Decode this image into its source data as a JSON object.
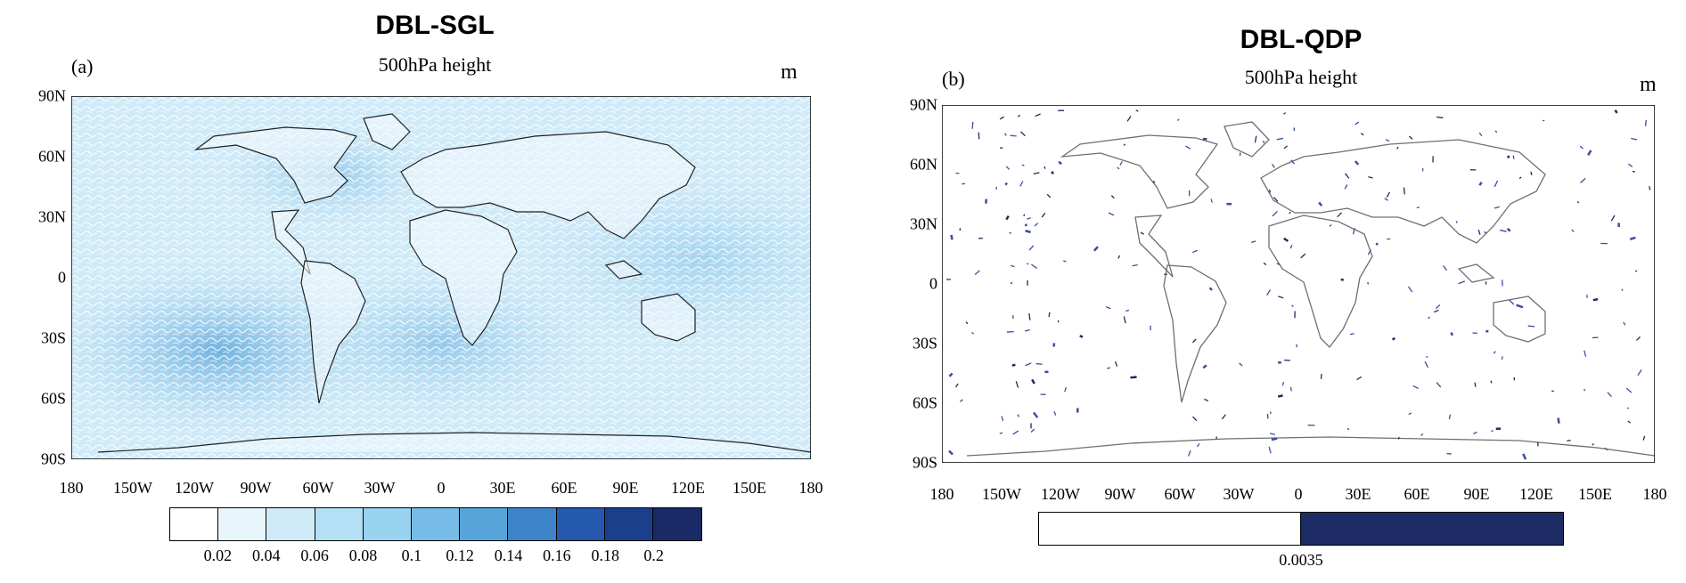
{
  "panel_a": {
    "title": "DBL-SGL",
    "label": "(a)",
    "subtitle": "500hPa height",
    "unit": "m",
    "lat_labels": [
      "90N",
      "60N",
      "30N",
      "0",
      "30S",
      "60S",
      "90S"
    ],
    "lon_labels": [
      "180",
      "150W",
      "120W",
      "90W",
      "60W",
      "30W",
      "0",
      "30E",
      "60E",
      "90E",
      "120E",
      "150E",
      "180"
    ],
    "colorbar": {
      "colors": [
        "#ffffff",
        "#e8f5fb",
        "#cfebf7",
        "#b3e0f5",
        "#99d3f0",
        "#77bce6",
        "#55a5da",
        "#3d84c8",
        "#2459ad",
        "#1c3f8c",
        "#1a2a66"
      ],
      "labels": [
        "0.02",
        "0.04",
        "0.06",
        "0.08",
        "0.1",
        "0.12",
        "0.14",
        "0.16",
        "0.18",
        "0.2"
      ]
    }
  },
  "panel_b": {
    "title": "DBL-QDP",
    "label": "(b)",
    "subtitle": "500hPa height",
    "unit": "m",
    "lat_labels": [
      "90N",
      "60N",
      "30N",
      "0",
      "30S",
      "60S",
      "90S"
    ],
    "lon_labels": [
      "180",
      "150W",
      "120W",
      "90W",
      "60W",
      "30W",
      "0",
      "30E",
      "60E",
      "90E",
      "120E",
      "150E",
      "180"
    ],
    "colorbar": {
      "colors": [
        "#ffffff",
        "#1c2b63"
      ],
      "labels": [
        "0.0035"
      ]
    }
  }
}
